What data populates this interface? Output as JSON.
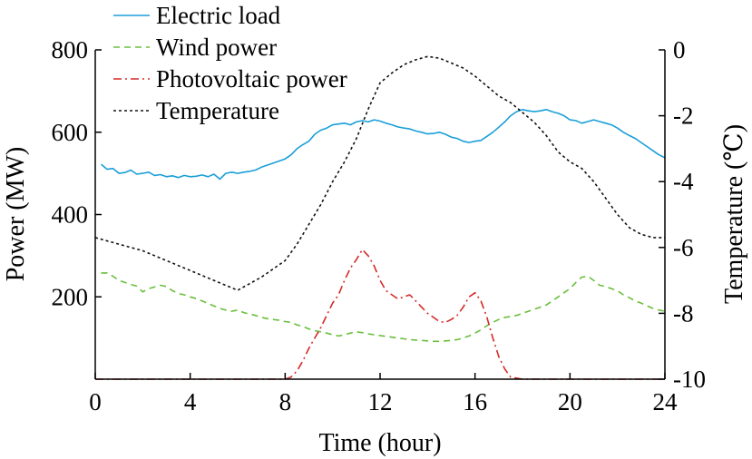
{
  "chart_data": {
    "type": "line",
    "xlabel": "Time (hour)",
    "ylabel_left": "Power (MW)",
    "ylabel_right": "Temperature (℃)",
    "xlim": [
      0,
      24
    ],
    "ylim_left": [
      0,
      800
    ],
    "ylim_right": [
      -10,
      0
    ],
    "x_ticks": [
      "0",
      "4",
      "8",
      "12",
      "16",
      "20",
      "24"
    ],
    "y_left_ticks": [
      "200",
      "400",
      "600",
      "800"
    ],
    "y_right_ticks": [
      "0",
      "-2",
      "-4",
      "-6",
      "-8",
      "-10"
    ],
    "grid": false,
    "legend_position": "top-left",
    "series": [
      {
        "name": "Electric load",
        "axis": "left",
        "color": "#1a9fd8",
        "style": "solid",
        "x": [
          0.25,
          0.5,
          0.75,
          1,
          1.25,
          1.5,
          1.75,
          2,
          2.25,
          2.5,
          2.75,
          3,
          3.25,
          3.5,
          3.75,
          4,
          4.25,
          4.5,
          4.75,
          5,
          5.25,
          5.5,
          5.75,
          6,
          6.25,
          6.5,
          6.75,
          7,
          7.25,
          7.5,
          7.75,
          8,
          8.25,
          8.5,
          8.75,
          9,
          9.25,
          9.5,
          9.75,
          10,
          10.25,
          10.5,
          10.75,
          11,
          11.25,
          11.5,
          11.75,
          12,
          12.25,
          12.5,
          12.75,
          13,
          13.25,
          13.5,
          13.75,
          14,
          14.25,
          14.5,
          14.75,
          15,
          15.25,
          15.5,
          15.75,
          16,
          16.25,
          16.5,
          16.75,
          17,
          17.25,
          17.5,
          17.75,
          18,
          18.25,
          18.5,
          18.75,
          19,
          19.25,
          19.5,
          19.75,
          20,
          20.25,
          20.5,
          20.75,
          21,
          21.25,
          21.5,
          21.75,
          22,
          22.25,
          22.5,
          22.75,
          23,
          23.25,
          23.5,
          23.75,
          24
        ],
        "values": [
          522,
          510,
          512,
          500,
          502,
          508,
          498,
          500,
          503,
          495,
          497,
          492,
          494,
          490,
          495,
          492,
          493,
          496,
          492,
          498,
          486,
          500,
          503,
          500,
          503,
          505,
          508,
          515,
          520,
          525,
          530,
          535,
          545,
          560,
          570,
          578,
          595,
          605,
          610,
          618,
          620,
          622,
          618,
          625,
          628,
          625,
          630,
          627,
          622,
          618,
          613,
          610,
          608,
          603,
          600,
          596,
          597,
          600,
          595,
          588,
          585,
          578,
          575,
          578,
          580,
          590,
          600,
          612,
          625,
          640,
          650,
          655,
          652,
          650,
          652,
          655,
          650,
          646,
          640,
          630,
          628,
          622,
          626,
          630,
          626,
          622,
          618,
          610,
          600,
          592,
          585,
          575,
          565,
          555,
          545,
          538
        ]
      },
      {
        "name": "Wind power",
        "axis": "left",
        "color": "#6abf3c",
        "style": "dashed",
        "x": [
          0.25,
          0.5,
          0.75,
          1,
          1.25,
          1.5,
          1.75,
          2,
          2.25,
          2.5,
          2.75,
          3,
          3.25,
          3.5,
          3.75,
          4,
          4.25,
          4.5,
          4.75,
          5,
          5.25,
          5.5,
          5.75,
          6,
          6.25,
          6.5,
          6.75,
          7,
          7.25,
          7.5,
          7.75,
          8,
          8.25,
          8.5,
          8.75,
          9,
          9.25,
          9.5,
          9.75,
          10,
          10.25,
          10.5,
          10.75,
          11,
          11.25,
          11.5,
          11.75,
          12,
          12.25,
          12.5,
          12.75,
          13,
          13.25,
          13.5,
          13.75,
          14,
          14.25,
          14.5,
          14.75,
          15,
          15.25,
          15.5,
          15.75,
          16,
          16.25,
          16.5,
          16.75,
          17,
          17.25,
          17.5,
          17.75,
          18,
          18.25,
          18.5,
          18.75,
          19,
          19.25,
          19.5,
          19.75,
          20,
          20.25,
          20.5,
          20.75,
          21,
          21.25,
          21.5,
          21.75,
          22,
          22.25,
          22.5,
          22.75,
          23,
          23.25,
          23.5,
          23.75,
          24
        ],
        "values": [
          258,
          258,
          250,
          240,
          235,
          230,
          226,
          212,
          220,
          224,
          228,
          225,
          215,
          208,
          205,
          200,
          196,
          190,
          184,
          178,
          172,
          168,
          165,
          168,
          162,
          158,
          155,
          150,
          147,
          145,
          143,
          140,
          138,
          132,
          128,
          122,
          118,
          115,
          112,
          108,
          105,
          108,
          112,
          115,
          113,
          110,
          108,
          106,
          104,
          102,
          100,
          98,
          96,
          95,
          94,
          93,
          92,
          92,
          93,
          94,
          96,
          100,
          105,
          112,
          120,
          130,
          138,
          145,
          150,
          152,
          155,
          160,
          165,
          170,
          175,
          180,
          190,
          200,
          210,
          220,
          235,
          248,
          250,
          240,
          228,
          225,
          220,
          215,
          205,
          198,
          190,
          185,
          178,
          172,
          168,
          165
        ]
      },
      {
        "name": "Photovoltaic power",
        "axis": "left",
        "color": "#d42a28",
        "style": "dashdot",
        "x": [
          0,
          0.5,
          1,
          1.5,
          2,
          2.5,
          3,
          3.5,
          4,
          4.5,
          5,
          5.5,
          6,
          6.5,
          7,
          7.5,
          8,
          8.25,
          8.5,
          8.75,
          9,
          9.25,
          9.5,
          9.75,
          10,
          10.25,
          10.5,
          10.75,
          11,
          11.25,
          11.5,
          11.75,
          12,
          12.25,
          12.5,
          12.75,
          13,
          13.25,
          13.5,
          13.75,
          14,
          14.25,
          14.5,
          14.75,
          15,
          15.25,
          15.5,
          15.75,
          16,
          16.25,
          16.5,
          16.75,
          17,
          17.25,
          17.5,
          18,
          19,
          20,
          21,
          22,
          23,
          24
        ],
        "values": [
          0,
          0,
          0,
          0,
          0,
          0,
          0,
          0,
          0,
          0,
          0,
          0,
          0,
          0,
          0,
          0,
          0,
          5,
          20,
          45,
          75,
          100,
          125,
          155,
          185,
          205,
          240,
          270,
          290,
          315,
          300,
          275,
          240,
          215,
          205,
          195,
          200,
          205,
          190,
          175,
          160,
          150,
          140,
          138,
          145,
          155,
          175,
          200,
          210,
          190,
          150,
          100,
          55,
          25,
          5,
          0,
          0,
          0,
          0,
          0,
          0,
          0
        ]
      },
      {
        "name": "Temperature",
        "axis": "right",
        "color": "#111111",
        "style": "dotted",
        "x": [
          0,
          1,
          2,
          3,
          4,
          5,
          6,
          7,
          8,
          8.5,
          9,
          9.5,
          10,
          10.5,
          11,
          11.5,
          12,
          12.5,
          13,
          13.5,
          14,
          14.5,
          15,
          15.5,
          16,
          16.5,
          17,
          17.5,
          18,
          18.5,
          19,
          19.5,
          20,
          20.5,
          21,
          21.5,
          22,
          22.5,
          23,
          23.5,
          24
        ],
        "values": [
          -5.7,
          -5.9,
          -6.1,
          -6.4,
          -6.7,
          -7.0,
          -7.3,
          -6.9,
          -6.4,
          -5.9,
          -5.3,
          -4.7,
          -4.0,
          -3.4,
          -2.7,
          -1.8,
          -1.0,
          -0.7,
          -0.45,
          -0.3,
          -0.2,
          -0.25,
          -0.4,
          -0.55,
          -0.8,
          -1.1,
          -1.4,
          -1.6,
          -1.9,
          -2.2,
          -2.6,
          -3.1,
          -3.4,
          -3.6,
          -4.0,
          -4.5,
          -5.0,
          -5.4,
          -5.6,
          -5.7,
          -5.7
        ]
      }
    ]
  }
}
